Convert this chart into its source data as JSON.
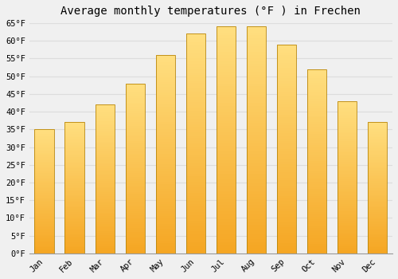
{
  "title": "Average monthly temperatures (°F ) in Frechen",
  "months": [
    "Jan",
    "Feb",
    "Mar",
    "Apr",
    "May",
    "Jun",
    "Jul",
    "Aug",
    "Sep",
    "Oct",
    "Nov",
    "Dec"
  ],
  "values": [
    35,
    37,
    42,
    48,
    56,
    62,
    64,
    64,
    59,
    52,
    43,
    37
  ],
  "ylim": [
    0,
    65
  ],
  "yticks": [
    0,
    5,
    10,
    15,
    20,
    25,
    30,
    35,
    40,
    45,
    50,
    55,
    60,
    65
  ],
  "ytick_labels": [
    "0°F",
    "5°F",
    "10°F",
    "15°F",
    "20°F",
    "25°F",
    "30°F",
    "35°F",
    "40°F",
    "45°F",
    "50°F",
    "55°F",
    "60°F",
    "65°F"
  ],
  "background_color": "#f0f0f0",
  "grid_color": "#dddddd",
  "title_fontsize": 10,
  "tick_fontsize": 7.5,
  "bar_color_bottom": "#F5A623",
  "bar_color_top": "#FFD966",
  "bar_edge_color": "#B8860B",
  "bar_width": 0.65
}
